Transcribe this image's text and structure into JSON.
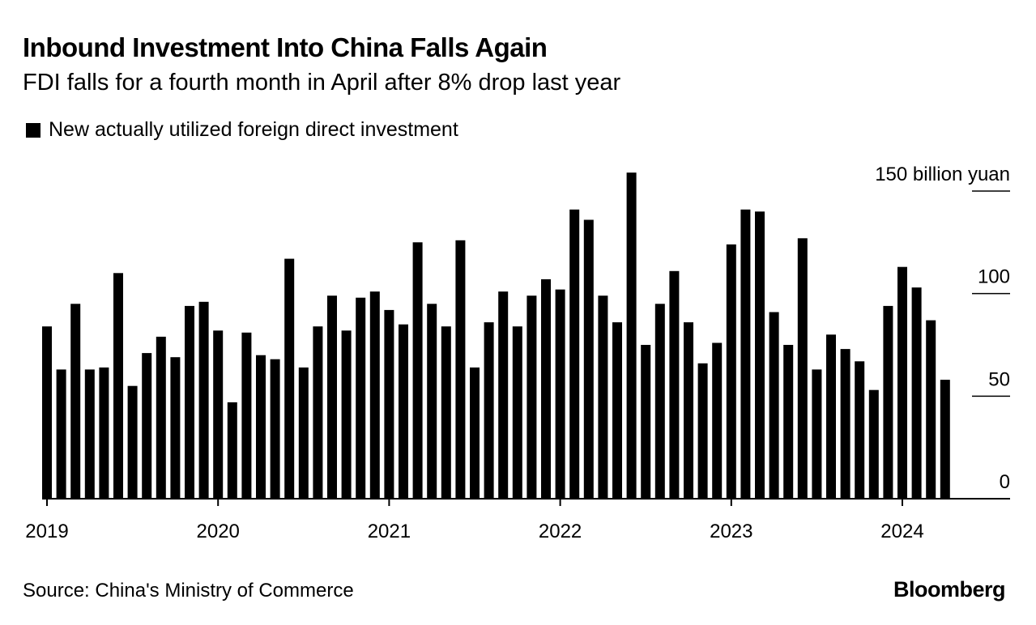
{
  "header": {
    "title": "Inbound Investment Into China Falls Again",
    "subtitle": "FDI falls for a fourth month in April after 8% drop last year"
  },
  "footer": {
    "source": "Source: China's Ministry of Commerce",
    "brand": "Bloomberg"
  },
  "chart_data": {
    "type": "bar",
    "title": "Inbound Investment Into China Falls Again",
    "subtitle": "FDI falls for a fourth month in April after 8% drop last year",
    "legend": [
      "New actually utilized foreign direct investment"
    ],
    "legend_position": "top-left",
    "ylabel": "billion yuan",
    "y_unit_label": "150 billion yuan",
    "ylim": [
      0,
      150
    ],
    "yticks": [
      0,
      50,
      100,
      150
    ],
    "ytick_labels": [
      "0",
      "50",
      "100",
      "150 billion yuan"
    ],
    "y_axis_side": "right",
    "xtick_labels": [
      "2019",
      "2020",
      "2021",
      "2022",
      "2023",
      "2024"
    ],
    "categories": [
      "2019-01",
      "2019-02",
      "2019-03",
      "2019-04",
      "2019-05",
      "2019-06",
      "2019-07",
      "2019-08",
      "2019-09",
      "2019-10",
      "2019-11",
      "2019-12",
      "2020-01",
      "2020-02",
      "2020-03",
      "2020-04",
      "2020-05",
      "2020-06",
      "2020-07",
      "2020-08",
      "2020-09",
      "2020-10",
      "2020-11",
      "2020-12",
      "2021-01",
      "2021-02",
      "2021-03",
      "2021-04",
      "2021-05",
      "2021-06",
      "2021-07",
      "2021-08",
      "2021-09",
      "2021-10",
      "2021-11",
      "2021-12",
      "2022-01",
      "2022-02",
      "2022-03",
      "2022-04",
      "2022-05",
      "2022-06",
      "2022-07",
      "2022-08",
      "2022-09",
      "2022-10",
      "2022-11",
      "2022-12",
      "2023-01",
      "2023-02",
      "2023-03",
      "2023-04",
      "2023-05",
      "2023-06",
      "2023-07",
      "2023-08",
      "2023-09",
      "2023-10",
      "2023-11",
      "2023-12",
      "2024-01",
      "2024-02",
      "2024-03",
      "2024-04"
    ],
    "series": [
      {
        "name": "New actually utilized foreign direct investment",
        "color": "#000000",
        "values": [
          84,
          63,
          95,
          63,
          64,
          110,
          55,
          71,
          79,
          69,
          94,
          96,
          82,
          47,
          81,
          70,
          68,
          117,
          64,
          84,
          99,
          82,
          98,
          101,
          92,
          85,
          125,
          95,
          84,
          126,
          64,
          86,
          101,
          84,
          99,
          107,
          102,
          141,
          136,
          99,
          86,
          159,
          75,
          95,
          111,
          86,
          66,
          76,
          124,
          141,
          140,
          91,
          75,
          127,
          63,
          80,
          73,
          67,
          53,
          94,
          113,
          103,
          87,
          58
        ]
      }
    ],
    "grid": false
  }
}
